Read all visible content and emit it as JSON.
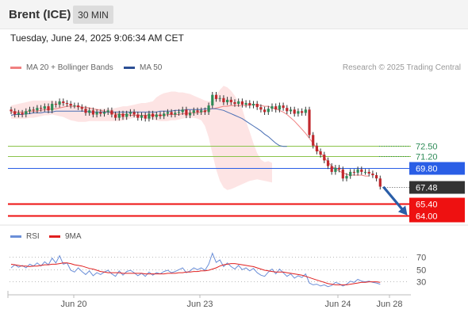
{
  "header": {
    "instrument": "Brent (ICE)",
    "timeframe": "30 MIN"
  },
  "timestamp": "Tuesday, June 24, 2025 9:06:34 AM CET",
  "legend": {
    "ma20": "MA 20 + Bollinger Bands",
    "ma50": "MA 50",
    "copyright": "Research © 2025 Trading Central"
  },
  "rsi_legend": {
    "rsi": "RSI",
    "ma": "9MA"
  },
  "colors": {
    "ma20": "#f08080",
    "ma50": "#4a6fb5",
    "band": "#fde4e4",
    "up": "#2e8b57",
    "down": "#c0282d",
    "rsi": "#6b8fd8",
    "rsi_ma": "#e02020",
    "support": "#ee1111",
    "pivot": "#2a5ee6",
    "current": "#333333",
    "resistance": "#8bc34a"
  },
  "chart_data": [
    {
      "type": "candlestick",
      "title": "Brent (ICE)",
      "x_tick_labels": [
        "Jun 20",
        "Jun 23",
        "Jun 24",
        "Jun 28"
      ],
      "ylim": [
        63.2,
        80.6
      ],
      "levels": [
        {
          "label": "72.50",
          "value": 72.5,
          "kind": "resistance"
        },
        {
          "label": "71.20",
          "value": 71.2,
          "kind": "resistance"
        },
        {
          "label": "69.80",
          "value": 69.8,
          "kind": "pivot"
        },
        {
          "label": "67.48",
          "value": 67.48,
          "kind": "current"
        },
        {
          "label": "65.40",
          "value": 65.4,
          "kind": "support"
        },
        {
          "label": "64.00",
          "value": 64.0,
          "kind": "support"
        }
      ],
      "close": [
        76.7,
        76.3,
        76.5,
        76.3,
        76.7,
        76.9,
        76.8,
        77.1,
        77.0,
        77.3,
        76.8,
        77.6,
        77.5,
        77.9,
        77.7,
        77.6,
        77.4,
        77.4,
        77.2,
        77.0,
        76.5,
        76.8,
        76.3,
        76.6,
        76.4,
        76.6,
        76.8,
        76.3,
        75.9,
        76.4,
        76.0,
        76.4,
        76.6,
        76.3,
        75.9,
        76.2,
        75.8,
        76.4,
        76.0,
        76.3,
        76.1,
        76.4,
        76.6,
        76.3,
        76.5,
        76.6,
        76.9,
        76.2,
        76.5,
        76.8,
        76.6,
        76.8,
        76.6,
        77.4,
        78.7,
        78.2,
        78.3,
        77.8,
        78.1,
        77.8,
        77.6,
        77.9,
        77.5,
        77.7,
        77.4,
        77.6,
        77.2,
        76.9,
        76.6,
        77.0,
        77.3,
        76.9,
        77.4,
        77.1,
        76.7,
        76.9,
        76.4,
        76.7,
        76.5,
        76.9,
        73.8,
        72.5,
        71.8,
        71.4,
        70.7,
        70.0,
        69.3,
        69.8,
        69.6,
        68.5,
        68.8,
        69.3,
        69.2,
        69.6,
        69.3,
        69.3,
        69.1,
        68.9,
        68.5,
        67.5
      ],
      "ma20": [
        76.6,
        76.6,
        76.6,
        76.6,
        76.6,
        76.7,
        76.7,
        76.7,
        76.8,
        76.9,
        76.9,
        77.0,
        77.0,
        77.1,
        77.2,
        77.3,
        77.3,
        77.3,
        77.3,
        77.2,
        77.2,
        77.1,
        77.0,
        76.9,
        76.8,
        76.7,
        76.6,
        76.5,
        76.4,
        76.3,
        76.3,
        76.3,
        76.2,
        76.2,
        76.2,
        76.2,
        76.2,
        76.2,
        76.2,
        76.2,
        76.2,
        76.2,
        76.3,
        76.3,
        76.3,
        76.3,
        76.4,
        76.4,
        76.5,
        76.5,
        76.5,
        76.6,
        76.7,
        76.9,
        77.0,
        77.1,
        77.2,
        77.3,
        77.3,
        77.4,
        77.4,
        77.4,
        77.4,
        77.4,
        77.5,
        77.5,
        77.5,
        77.4,
        77.3,
        77.3,
        77.1,
        77.0,
        76.8,
        76.6,
        76.3,
        75.9,
        75.5,
        75.0,
        74.5,
        74.0,
        73.4,
        72.8,
        72.2,
        71.6,
        71.1,
        70.5,
        70.0,
        69.7,
        69.4,
        69.2,
        69.0,
        68.9,
        68.9,
        68.9,
        68.9,
        68.8,
        68.8
      ],
      "ma50": [
        76.2,
        76.3,
        76.3,
        76.3,
        76.4,
        76.4,
        76.5,
        76.5,
        76.5,
        76.6,
        76.6,
        76.6,
        76.7,
        76.7,
        76.7,
        76.7,
        76.7,
        76.7,
        76.7,
        76.7,
        76.7,
        76.6,
        76.6,
        76.6,
        76.6,
        76.6,
        76.6,
        76.6,
        76.6,
        76.6,
        76.6,
        76.6,
        76.6,
        76.6,
        76.6,
        76.6,
        76.6,
        76.6,
        76.6,
        76.6,
        76.7,
        76.7,
        76.7,
        76.7,
        76.8,
        76.8,
        76.8,
        76.9,
        76.9,
        76.9,
        76.9,
        76.9,
        77.0,
        77.0,
        77.0,
        77.0,
        76.9,
        76.8,
        76.6,
        76.4,
        76.2,
        76.0,
        75.8,
        75.5,
        75.2,
        74.9,
        74.6,
        74.3,
        73.9,
        73.6,
        73.2,
        72.8,
        72.5,
        72.4,
        72.4
      ],
      "bb_upper": [
        77.4,
        77.5,
        77.6,
        77.7,
        77.8,
        77.9,
        78.0,
        78.0,
        78.0,
        78.0,
        78.0,
        78.0,
        77.9,
        77.8,
        77.8,
        77.7,
        77.6,
        77.5,
        77.4,
        77.3,
        77.2,
        77.1,
        77.0,
        77.0,
        77.0,
        77.0,
        77.0,
        77.0,
        77.1,
        77.2,
        77.3,
        77.3,
        77.4,
        77.5,
        77.6,
        77.7,
        77.7,
        77.8,
        77.9,
        78.4,
        78.7,
        78.9,
        79.0,
        79.1,
        79.1,
        79.0,
        79.0,
        78.9,
        78.8,
        78.6,
        78.4,
        78.2,
        78.0,
        77.9,
        78.0,
        78.6,
        79.3,
        79.8,
        79.6,
        79.2,
        78.6,
        77.8,
        77.0,
        75.5,
        74.2,
        72.8,
        71.6,
        70.8,
        70.5,
        70.6,
        70.4
      ],
      "bb_lower": [
        75.8,
        75.8,
        75.8,
        75.8,
        75.8,
        75.9,
        75.9,
        76.0,
        76.1,
        76.2,
        76.2,
        76.3,
        76.2,
        76.1,
        76.0,
        75.8,
        75.6,
        75.5,
        75.4,
        75.4,
        75.4,
        75.5,
        75.5,
        75.5,
        75.5,
        75.5,
        75.5,
        75.5,
        75.5,
        75.5,
        75.6,
        75.7,
        75.8,
        75.9,
        75.9,
        75.9,
        75.8,
        75.7,
        75.7,
        75.6,
        75.5,
        75.5,
        75.5,
        75.6,
        75.6,
        75.7,
        75.8,
        75.9,
        75.9,
        75.9,
        75.8,
        75.6,
        74.9,
        73.5,
        71.5,
        69.6,
        68.2,
        67.4,
        67.1,
        67.2,
        67.4,
        67.6,
        67.8,
        68.0,
        68.2,
        68.3,
        68.4,
        68.3,
        68.2,
        68.1,
        68.0
      ],
      "projection": {
        "from": 67.48,
        "to": 64.0
      }
    },
    {
      "type": "line",
      "title": "RSI",
      "ylim": [
        18,
        82
      ],
      "y_tick_labels": [
        "70",
        "50",
        "30"
      ],
      "series": [
        {
          "name": "RSI",
          "values": [
            52,
            57,
            53,
            56,
            52,
            58,
            55,
            60,
            55,
            62,
            57,
            68,
            60,
            72,
            58,
            60,
            48,
            45,
            52,
            46,
            41,
            47,
            39,
            44,
            41,
            45,
            48,
            42,
            38,
            47,
            40,
            46,
            48,
            44,
            39,
            43,
            38,
            45,
            40,
            44,
            42,
            46,
            48,
            44,
            46,
            49,
            52,
            44,
            47,
            52,
            49,
            52,
            48,
            58,
            76,
            61,
            65,
            54,
            60,
            54,
            50,
            56,
            49,
            52,
            47,
            51,
            44,
            40,
            38,
            45,
            50,
            42,
            50,
            44,
            38,
            42,
            35,
            39,
            36,
            42,
            27,
            24,
            25,
            22,
            24,
            21,
            23,
            28,
            26,
            22,
            25,
            30,
            28,
            33,
            30,
            29,
            30,
            28,
            27,
            25
          ]
        },
        {
          "name": "9MA",
          "values": [
            58,
            57,
            56,
            55,
            55,
            54,
            55,
            55,
            56,
            57,
            57,
            58,
            58,
            59,
            60,
            60,
            59,
            57,
            56,
            55,
            53,
            51,
            50,
            48,
            46,
            45,
            44,
            44,
            44,
            44,
            43,
            43,
            43,
            43,
            43,
            43,
            42,
            42,
            42,
            42,
            42,
            42,
            43,
            43,
            43,
            44,
            44,
            45,
            45,
            46,
            46,
            47,
            47,
            48,
            50,
            52,
            55,
            57,
            58,
            59,
            59,
            58,
            57,
            56,
            55,
            54,
            52,
            50,
            48,
            47,
            46,
            45,
            45,
            45,
            44,
            43,
            42,
            41,
            40,
            38,
            36,
            34,
            32,
            30,
            28,
            26,
            25,
            24,
            24,
            24,
            24,
            25,
            26,
            27,
            28,
            28,
            29,
            29,
            29,
            28
          ]
        }
      ]
    }
  ]
}
